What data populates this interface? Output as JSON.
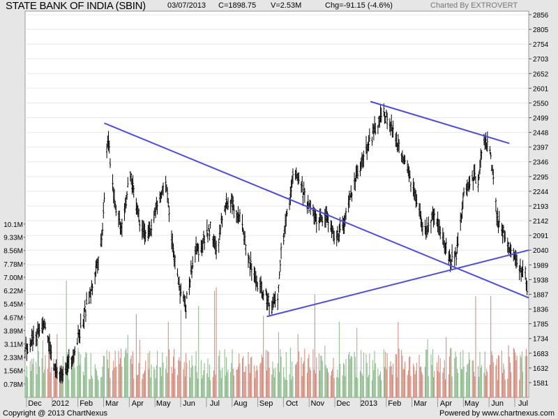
{
  "header": {
    "title": "STATE BANK OF INDIA (SBIN)",
    "date": "03/07/2013",
    "close": "C=1898.75",
    "volume": "V=2.53M",
    "change": "Chg=-91.15 (-4.6%)",
    "credit": "Charted By EXTROVERT"
  },
  "footer": {
    "copyright": "Copyright @ 2013 ChartNexus",
    "powered": "Powered by www.chartnexus.com"
  },
  "colors": {
    "trendline": "#4a4af0",
    "price_bars": "#000000",
    "volume_up": "#88b888",
    "volume_down": "#d08878",
    "grid": "#e8e8e8",
    "background": "#e6e6e6",
    "plot_background": "#ffffff"
  },
  "chart_data": {
    "type": "ohlc",
    "title": "STATE BANK OF INDIA (SBIN)",
    "x_ticks": [
      "Dec",
      "2012",
      "Feb",
      "Mar",
      "Apr",
      "May",
      "Jun",
      "Jul",
      "Aug",
      "Sep",
      "Oct",
      "Nov",
      "Dec",
      "2013",
      "Feb",
      "Mar",
      "Apr",
      "May",
      "Jun",
      "Jul"
    ],
    "x_range": [
      "2011-11-15",
      "2013-07-05"
    ],
    "price_axis": {
      "ticks": [
        1581,
        1632,
        1683,
        1734,
        1785,
        1836,
        1887,
        1938,
        1989,
        2040,
        2091,
        2142,
        2193,
        2244,
        2295,
        2346,
        2397,
        2448,
        2499,
        2550,
        2601,
        2652,
        2703,
        2754,
        2805,
        2856
      ],
      "range": [
        1530,
        2868
      ]
    },
    "volume_axis": {
      "ticks": [
        "0.78M",
        "1.56M",
        "2.33M",
        "3.11M",
        "3.89M",
        "4.67M",
        "5.45M",
        "6.22M",
        "7.00M",
        "7.78M",
        "8.56M",
        "9.33M",
        "10.1M"
      ],
      "range_millions": [
        0,
        10.5
      ]
    },
    "price_path": [
      [
        "2011-11-15",
        1700
      ],
      [
        "2011-11-28",
        1740
      ],
      [
        "2011-12-08",
        1800
      ],
      [
        "2011-12-20",
        1620
      ],
      [
        "2011-12-27",
        1605
      ],
      [
        "2012-01-10",
        1670
      ],
      [
        "2012-01-22",
        1790
      ],
      [
        "2012-02-03",
        1920
      ],
      [
        "2012-02-14",
        2080
      ],
      [
        "2012-02-21",
        2430
      ],
      [
        "2012-03-01",
        2200
      ],
      [
        "2012-03-08",
        2120
      ],
      [
        "2012-03-19",
        2300
      ],
      [
        "2012-03-30",
        2150
      ],
      [
        "2012-04-09",
        2080
      ],
      [
        "2012-04-20",
        2200
      ],
      [
        "2012-05-01",
        2270
      ],
      [
        "2012-05-08",
        2050
      ],
      [
        "2012-05-17",
        1900
      ],
      [
        "2012-05-24",
        1850
      ],
      [
        "2012-06-03",
        2030
      ],
      [
        "2012-06-12",
        2060
      ],
      [
        "2012-06-22",
        2120
      ],
      [
        "2012-06-30",
        2020
      ],
      [
        "2012-07-08",
        2200
      ],
      [
        "2012-07-18",
        2210
      ],
      [
        "2012-07-28",
        2150
      ],
      [
        "2012-08-07",
        2000
      ],
      [
        "2012-08-17",
        1920
      ],
      [
        "2012-08-26",
        1880
      ],
      [
        "2012-09-03",
        1850
      ],
      [
        "2012-09-10",
        1860
      ],
      [
        "2012-09-14",
        2040
      ],
      [
        "2012-09-20",
        2140
      ],
      [
        "2012-09-29",
        2310
      ],
      [
        "2012-10-07",
        2270
      ],
      [
        "2012-10-14",
        2210
      ],
      [
        "2012-10-28",
        2140
      ],
      [
        "2012-11-07",
        2160
      ],
      [
        "2012-11-17",
        2080
      ],
      [
        "2012-11-27",
        2120
      ],
      [
        "2012-12-04",
        2210
      ],
      [
        "2012-12-14",
        2310
      ],
      [
        "2012-12-25",
        2400
      ],
      [
        "2013-01-06",
        2470
      ],
      [
        "2013-01-14",
        2520
      ],
      [
        "2013-01-25",
        2450
      ],
      [
        "2013-02-03",
        2380
      ],
      [
        "2013-02-13",
        2300
      ],
      [
        "2013-02-22",
        2200
      ],
      [
        "2013-03-03",
        2100
      ],
      [
        "2013-03-13",
        2150
      ],
      [
        "2013-03-24",
        2100
      ],
      [
        "2013-04-03",
        2000
      ],
      [
        "2013-04-10",
        2030
      ],
      [
        "2013-04-18",
        2220
      ],
      [
        "2013-04-29",
        2300
      ],
      [
        "2013-05-06",
        2280
      ],
      [
        "2013-05-13",
        2440
      ],
      [
        "2013-05-20",
        2380
      ],
      [
        "2013-05-29",
        2140
      ],
      [
        "2013-06-08",
        2080
      ],
      [
        "2013-06-18",
        2020
      ],
      [
        "2013-06-25",
        1960
      ],
      [
        "2013-07-01",
        1980
      ],
      [
        "2013-07-03",
        1910
      ]
    ],
    "trendlines": [
      {
        "start": [
          "2012-02-17",
          2480
        ],
        "end": [
          "2013-07-05",
          1875
        ]
      },
      {
        "start": [
          "2012-08-28",
          1810
        ],
        "end": [
          "2013-07-05",
          2040
        ]
      },
      {
        "start": [
          "2012-12-29",
          2555
        ],
        "end": [
          "2013-06-12",
          2410
        ]
      }
    ]
  }
}
